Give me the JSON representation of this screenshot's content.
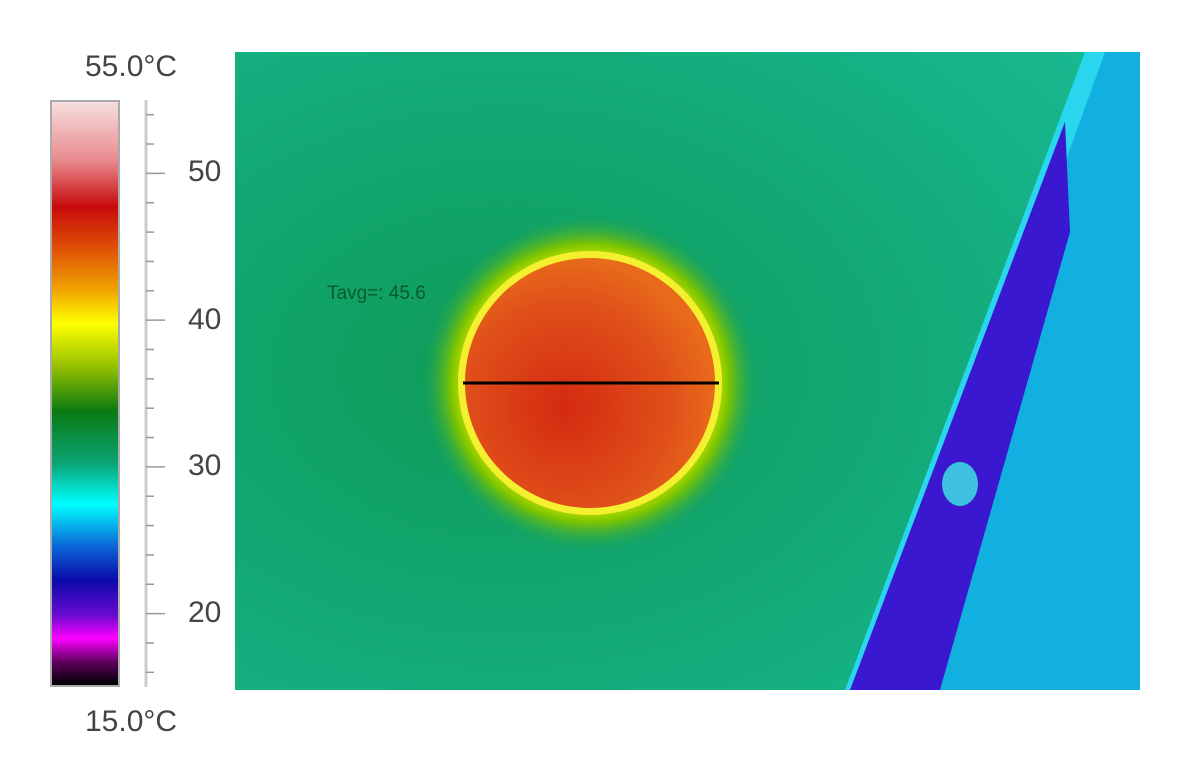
{
  "colorbar": {
    "max_label": "55.0°C",
    "min_label": "15.0°C",
    "range": [
      15.0,
      55.0
    ],
    "unit": "°C",
    "ticks": [
      "50",
      "40",
      "30",
      "20"
    ],
    "palette": "rainbow (black-magenta-blue-cyan-green-yellow-red-white)"
  },
  "thermal_image": {
    "measurement_label": "Tavg=: 45.6",
    "line_color": "#000000",
    "background_color": "#12a874",
    "hotspot_color": "#e0501a"
  }
}
